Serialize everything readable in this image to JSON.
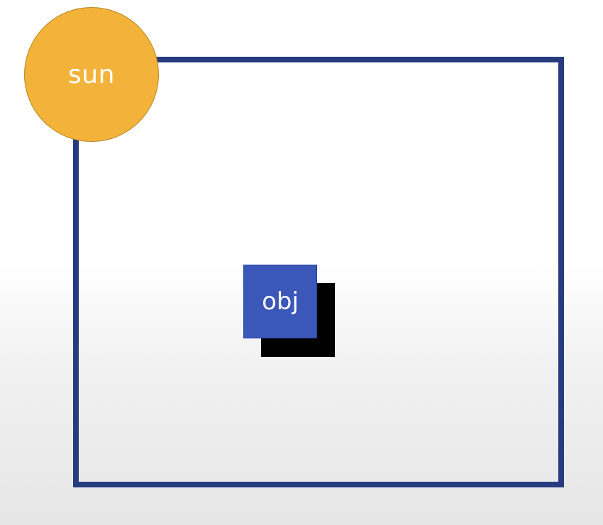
{
  "diagram": {
    "sun_label": "sun",
    "object_label": "obj"
  },
  "colors": {
    "frame": "#263c7e",
    "sun": "#f3b33a",
    "object": "#3b57b7",
    "shadow": "#000000",
    "label_text": "#ffffff"
  }
}
